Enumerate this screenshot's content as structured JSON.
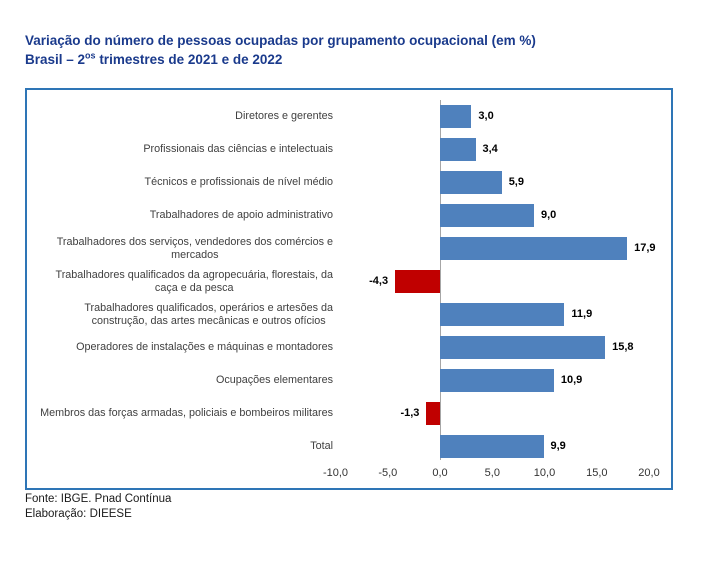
{
  "title": {
    "line1": "Variação do número de pessoas ocupadas por grupamento ocupacional (em %)",
    "line2_prefix": "Brasil – 2",
    "line2_sup": "os",
    "line2_suffix": " trimestres de 2021 e de 2022"
  },
  "chart_data": {
    "type": "bar",
    "orientation": "horizontal",
    "title": "Variação do número de pessoas ocupadas por grupamento ocupacional (em %) Brasil – 2os trimestres de 2021 e de 2022",
    "categories": [
      "Diretores e gerentes",
      "Profissionais das ciências e intelectuais",
      "Técnicos e profissionais de nível médio",
      "Trabalhadores de apoio administrativo",
      "Trabalhadores dos serviços, vendedores dos comércios e\nmercados",
      "Trabalhadores qualificados da agropecuária, florestais, da\ncaça e da pesca",
      "Trabalhadores qualificados, operários e artesões da\nconstrução, das artes mecânicas e outros ofícios",
      "Operadores de instalações e máquinas e montadores",
      "Ocupações elementares",
      "Membros das forças armadas, policiais e bombeiros militares",
      "Total"
    ],
    "values": [
      3.0,
      3.4,
      5.9,
      9.0,
      17.9,
      -4.3,
      11.9,
      15.8,
      10.9,
      -1.3,
      9.9
    ],
    "value_labels": [
      "3,0",
      "3,4",
      "5,9",
      "9,0",
      "17,9",
      "-4,3",
      "11,9",
      "15,8",
      "10,9",
      "-1,3",
      "9,9"
    ],
    "x_ticks": [
      -10,
      -5,
      0,
      5,
      10,
      15,
      20
    ],
    "x_tick_labels": [
      "-10,0",
      "-5,0",
      "0,0",
      "5,0",
      "10,0",
      "15,0",
      "20,0"
    ],
    "xlim": [
      -10,
      20
    ],
    "unit": "%",
    "grid": "zero-axis-only",
    "legend": "none",
    "colors": {
      "positive_bar": "#4F81BD",
      "negative_bar": "#C00000",
      "frame_border": "#2E75B6",
      "title_text": "#1A3A8C",
      "zero_axis_line": "#A6A6A6"
    }
  },
  "footer": {
    "line1": "Fonte: IBGE. Pnad Contínua",
    "line2": "Elaboração: DIEESE"
  }
}
